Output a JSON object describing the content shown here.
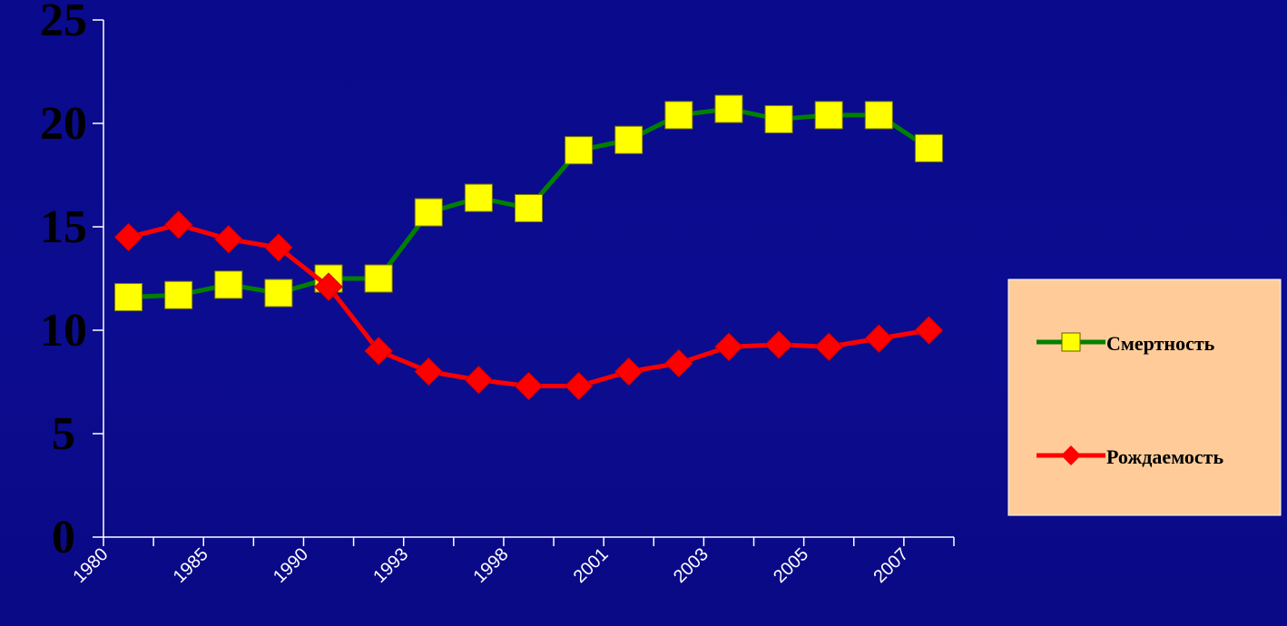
{
  "chart_data": {
    "type": "line",
    "title": "",
    "xlabel": "",
    "ylabel": "",
    "ylim": [
      0,
      25
    ],
    "yticks": [
      "0",
      "5",
      "10",
      "15",
      "20",
      "25"
    ],
    "x_tick_labels": [
      "1980",
      "1985",
      "1990",
      "1993",
      "1998",
      "2001",
      "2003",
      "2005",
      "2007"
    ],
    "grid": false,
    "legend_position": "right",
    "n_points": 17,
    "series": [
      {
        "name": "Смертность",
        "color": "#008000",
        "marker": "square",
        "marker_color": "#ffff00",
        "values": [
          11.6,
          11.7,
          12.2,
          11.8,
          12.5,
          12.5,
          15.7,
          16.4,
          15.9,
          18.7,
          19.2,
          20.4,
          20.7,
          20.2,
          20.4,
          20.4,
          18.8
        ]
      },
      {
        "name": "Рождаемость",
        "color": "#ff0000",
        "marker": "diamond",
        "marker_color": "#ff0000",
        "values": [
          14.5,
          15.1,
          14.4,
          14.0,
          12.1,
          9.0,
          8.0,
          7.6,
          7.3,
          7.3,
          8.0,
          8.4,
          9.2,
          9.3,
          9.2,
          9.6,
          10.0
        ]
      }
    ],
    "legend_bg": "#ffcc99",
    "background": "#0a0a8c"
  }
}
